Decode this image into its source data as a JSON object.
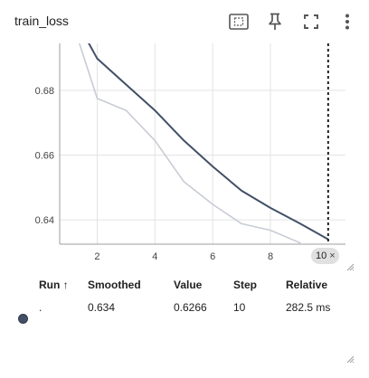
{
  "header": {
    "title": "train_loss"
  },
  "chart_data": {
    "type": "line",
    "title": "train_loss",
    "xlabel": "",
    "ylabel": "",
    "xlim": [
      0.7,
      10.6
    ],
    "ylim": [
      0.6325,
      0.6945
    ],
    "x_ticks": [
      "2",
      "4",
      "6",
      "8"
    ],
    "y_ticks": [
      "0.68",
      "0.66",
      "0.64"
    ],
    "grid": true,
    "series": [
      {
        "role": "raw",
        "color": "#c8ccd4",
        "x": [
          1,
          2,
          3,
          4,
          5,
          6,
          7,
          8,
          9,
          10
        ],
        "y": [
          0.705,
          0.6775,
          0.6738,
          0.6645,
          0.6518,
          0.6448,
          0.6388,
          0.6368,
          0.633,
          0.6266
        ]
      },
      {
        "role": "smoothed",
        "color": "#425066",
        "x": [
          1,
          2,
          3,
          4,
          5,
          6,
          7,
          8,
          9,
          10
        ],
        "y": [
          0.706,
          0.6898,
          0.6818,
          0.6738,
          0.6645,
          0.6565,
          0.649,
          0.6437,
          0.639,
          0.634
        ]
      }
    ],
    "cursor_step": 10
  },
  "cursor_chip": {
    "value": "10",
    "close": "×"
  },
  "table": {
    "headers": {
      "run": "Run ↑",
      "smoothed": "Smoothed",
      "value": "Value",
      "step": "Step",
      "relative": "Relative"
    },
    "row": {
      "run": ".",
      "smoothed": "0.634",
      "value": "0.6266",
      "step": "10",
      "relative": "282.5 ms",
      "color": "#425066"
    }
  },
  "icons": {
    "fit": "fit-domain-icon",
    "pin": "pin-icon",
    "fullscreen": "fullscreen-icon",
    "more": "more-vert-icon"
  }
}
